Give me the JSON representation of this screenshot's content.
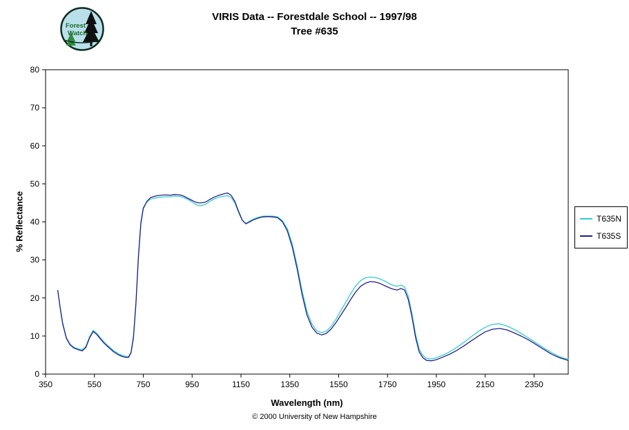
{
  "header": {
    "title_line1": "VIRIS Data -- Forestdale School -- 1997/98",
    "title_line2": "Tree #635",
    "logo": {
      "line1": "Forest",
      "line2": "Watch"
    }
  },
  "footer": {
    "credit": "© 2000 University of New Hampshire"
  },
  "chart_data": {
    "type": "line",
    "title": "VIRIS Data -- Forestdale School -- 1997/98 — Tree #635",
    "xlabel": "Wavelength (nm)",
    "ylabel": "% Reflectance",
    "xlim": [
      350,
      2490
    ],
    "ylim": [
      0,
      80
    ],
    "x_ticks": [
      350,
      550,
      750,
      950,
      1150,
      1350,
      1550,
      1750,
      1950,
      2150,
      2350
    ],
    "y_ticks": [
      0,
      10,
      20,
      30,
      40,
      50,
      60,
      70,
      80
    ],
    "grid": false,
    "legend_position": "right-outside",
    "x": [
      400,
      410,
      420,
      435,
      450,
      465,
      480,
      500,
      515,
      530,
      545,
      560,
      575,
      590,
      610,
      630,
      650,
      665,
      680,
      690,
      700,
      710,
      720,
      730,
      740,
      750,
      765,
      780,
      800,
      820,
      840,
      860,
      880,
      900,
      915,
      930,
      945,
      960,
      975,
      990,
      1005,
      1020,
      1040,
      1060,
      1080,
      1095,
      1110,
      1125,
      1140,
      1155,
      1170,
      1185,
      1200,
      1220,
      1240,
      1260,
      1280,
      1300,
      1320,
      1340,
      1360,
      1380,
      1400,
      1420,
      1440,
      1460,
      1480,
      1500,
      1520,
      1540,
      1560,
      1580,
      1600,
      1620,
      1640,
      1660,
      1680,
      1700,
      1720,
      1740,
      1760,
      1775,
      1790,
      1805,
      1820,
      1835,
      1850,
      1865,
      1880,
      1895,
      1910,
      1930,
      1950,
      1975,
      2000,
      2030,
      2060,
      2090,
      2120,
      2150,
      2180,
      2210,
      2240,
      2270,
      2300,
      2330,
      2360,
      2390,
      2420,
      2450,
      2470,
      2490
    ],
    "series": [
      {
        "name": "T635N",
        "color": "#33CCCC",
        "values": [
          21.8,
          17.5,
          13.5,
          9.6,
          7.9,
          7.1,
          6.7,
          6.4,
          7.3,
          9.8,
          11.5,
          10.7,
          9.5,
          8.4,
          7.2,
          6.1,
          5.3,
          4.9,
          4.6,
          4.6,
          5.8,
          10.0,
          19.0,
          31.0,
          40.0,
          43.8,
          45.2,
          46.0,
          46.3,
          46.5,
          46.6,
          46.6,
          46.8,
          46.7,
          46.4,
          46.0,
          45.4,
          44.8,
          44.3,
          44.3,
          44.6,
          45.3,
          46.0,
          46.5,
          46.8,
          46.9,
          46.4,
          45.0,
          42.5,
          40.4,
          39.6,
          40.2,
          40.7,
          41.2,
          41.5,
          41.5,
          41.5,
          41.3,
          40.3,
          38.2,
          34.2,
          28.5,
          22.0,
          16.5,
          13.2,
          11.4,
          10.9,
          11.3,
          12.6,
          14.5,
          16.8,
          19.0,
          21.2,
          23.2,
          24.6,
          25.3,
          25.5,
          25.4,
          25.0,
          24.4,
          23.7,
          23.3,
          23.1,
          23.4,
          22.9,
          20.5,
          16.0,
          10.5,
          6.5,
          4.9,
          4.1,
          4.0,
          4.3,
          4.9,
          5.7,
          6.9,
          8.2,
          9.7,
          11.1,
          12.3,
          13.1,
          13.2,
          12.6,
          11.7,
          10.6,
          9.4,
          8.1,
          6.9,
          5.7,
          4.7,
          4.2,
          3.9
        ]
      },
      {
        "name": "T635S",
        "color": "#221E8F",
        "values": [
          22.0,
          17.3,
          13.2,
          9.4,
          7.7,
          6.9,
          6.5,
          6.1,
          7.0,
          9.5,
          11.2,
          10.4,
          9.2,
          8.1,
          6.9,
          5.8,
          5.0,
          4.6,
          4.4,
          4.4,
          5.6,
          9.6,
          18.5,
          30.5,
          39.5,
          43.5,
          45.4,
          46.4,
          46.8,
          47.0,
          47.1,
          47.0,
          47.2,
          47.1,
          46.8,
          46.3,
          45.8,
          45.3,
          45.0,
          45.0,
          45.2,
          45.8,
          46.5,
          47.0,
          47.4,
          47.6,
          47.0,
          45.4,
          42.8,
          40.5,
          39.5,
          40.0,
          40.5,
          41.0,
          41.3,
          41.4,
          41.3,
          41.1,
          40.0,
          37.6,
          33.4,
          27.6,
          21.0,
          15.6,
          12.4,
          10.8,
          10.3,
          10.7,
          11.9,
          13.6,
          15.6,
          17.6,
          19.7,
          21.6,
          23.1,
          23.9,
          24.3,
          24.2,
          23.8,
          23.2,
          22.6,
          22.3,
          22.1,
          22.5,
          22.1,
          19.6,
          15.1,
          9.6,
          5.8,
          4.3,
          3.6,
          3.5,
          3.8,
          4.4,
          5.1,
          6.1,
          7.3,
          8.6,
          9.9,
          11.1,
          11.8,
          12.0,
          11.6,
          10.8,
          9.9,
          8.9,
          7.7,
          6.5,
          5.3,
          4.4,
          4.0,
          3.6
        ]
      }
    ]
  }
}
